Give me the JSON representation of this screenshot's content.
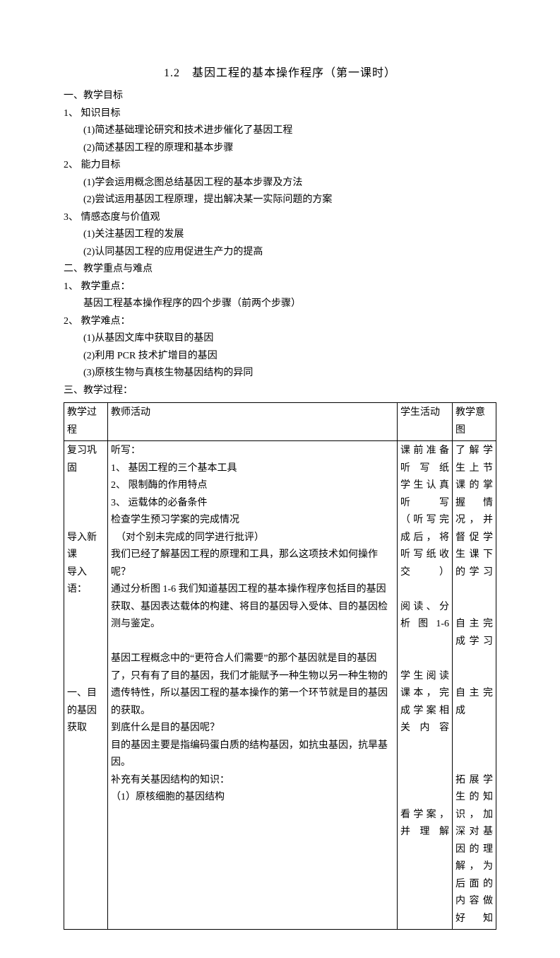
{
  "title": "1.2　基因工程的基本操作程序（第一课时）",
  "section1": {
    "heading": "一、教学目标",
    "items": [
      {
        "num": "1、",
        "label": "知识目标",
        "sub": [
          "(1)简述基础理论研究和技术进步催化了基因工程",
          "(2)简述基因工程的原理和基本步骤"
        ]
      },
      {
        "num": "2、",
        "label": "能力目标",
        "sub": [
          "(1)学会运用概念图总结基因工程的基本步骤及方法",
          "(2)尝试运用基因工程原理，提出解决某一实际问题的方案"
        ]
      },
      {
        "num": "3、",
        "label": "情感态度与价值观",
        "sub": [
          "(1)关注基因工程的发展",
          "(2)认同基因工程的应用促进生产力的提高"
        ]
      }
    ]
  },
  "section2": {
    "heading": "二、教学重点与难点",
    "items": [
      {
        "num": "1、",
        "label": "教学重点：",
        "sub_plain": [
          "基因工程基本操作程序的四个步骤（前两个步骤）"
        ]
      },
      {
        "num": "2、",
        "label": "教学难点：",
        "sub": [
          "(1)从基因文库中获取目的基因",
          "(2)利用 PCR 技术扩增目的基因",
          "(3)原核生物与真核生物基因结构的异同"
        ]
      }
    ]
  },
  "section3_heading": "三、教学过程：",
  "table": {
    "headers": [
      "教学过程",
      "教师活动",
      "学生活动",
      "教学意图"
    ],
    "row": {
      "process_lines": [
        "复习巩固",
        "",
        "",
        "",
        "导入新课",
        "导入语：",
        "",
        "",
        "",
        "",
        "",
        "一、目的基因获取"
      ],
      "teacher_lines": [
        "听写：",
        "1、 基因工程的三个基本工具",
        "2、 限制酶的作用特点",
        "3、 运载体的必备条件",
        "检查学生预习学案的完成情况",
        "　（对个别未完成的同学进行批评）",
        "我们已经了解基因工程的原理和工具，那么这项技术如何操作呢？",
        "通过分析图 1-6 我们知道基因工程的基本操作程序包括目的基因获取、基因表达载体的构建、将目的基因导入受体、目的基因检测与鉴定。",
        "",
        "基因工程概念中的“更符合人们需要”的那个基因就是目的基因了，只有有了目的基因，我们才能赋予一种生物以另一种生物的遗传特性，所以基因工程的基本操作的第一个环节就是目的基因的获取。",
        "到底什么是目的基因呢？",
        "目的基因主要是指编码蛋白质的结构基因，如抗虫基因，抗旱基因。",
        "补充有关基因结构的知识：",
        "（1）原核细胞的基因结构"
      ],
      "student_lines": [
        "课前准备听写纸",
        "学生认真听写",
        "（听写完成后，将听写纸收交）",
        "",
        "阅读、分析图1-6",
        "",
        "",
        "学生阅读课本，完成学案相关内容",
        "",
        "",
        "",
        "",
        "看学案，并理解"
      ],
      "intent_lines": [
        "了解学生上节课的掌握情况，并督促学生课下的学习",
        "",
        "",
        "自主完成学习",
        "",
        "",
        "自主完成",
        "",
        "",
        "",
        "拓展学生的知识，加深对基因的理解，为后面的内容做好知"
      ]
    }
  }
}
